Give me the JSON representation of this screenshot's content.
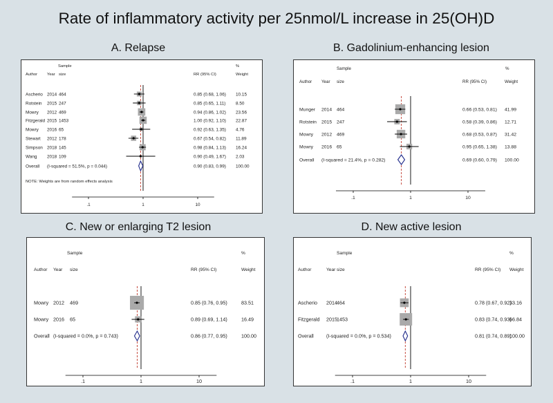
{
  "title": "Rate of inflammatory activity per 25nmol/L increase in 25(OH)D",
  "chart_data": [
    {
      "type": "forest",
      "panel_title": "A. Relapse",
      "headers": {
        "sample": "Sample",
        "pct": "%",
        "author": "Author",
        "year": "Year",
        "size": "size",
        "rr": "RR (95% CI)",
        "weight": "Weight"
      },
      "x_scale": "log",
      "xlim": [
        0.05,
        20
      ],
      "ticks": [
        ".1",
        "1",
        "10"
      ],
      "studies": [
        {
          "author": "Ascherio",
          "year": "2014",
          "size": "464",
          "rr": 0.85,
          "lo": 0.68,
          "hi": 1.06,
          "weight": 10.15,
          "ci_text": "0.85 (0.68, 1.06)",
          "weight_text": "10.15"
        },
        {
          "author": "Rotstein",
          "year": "2015",
          "size": "247",
          "rr": 0.85,
          "lo": 0.65,
          "hi": 1.11,
          "weight": 8.5,
          "ci_text": "0.85 (0.65, 1.11)",
          "weight_text": "8.50"
        },
        {
          "author": "Mowry",
          "year": "2012",
          "size": "469",
          "rr": 0.94,
          "lo": 0.86,
          "hi": 1.02,
          "weight": 23.56,
          "ci_text": "0.94 (0.86, 1.02)",
          "weight_text": "23.56"
        },
        {
          "author": "Fitzgerald",
          "year": "2015",
          "size": "1453",
          "rr": 1.0,
          "lo": 0.92,
          "hi": 1.1,
          "weight": 22.87,
          "ci_text": "1.00 (0.92, 1.10)",
          "weight_text": "22.87"
        },
        {
          "author": "Mowry",
          "year": "2016",
          "size": "65",
          "rr": 0.92,
          "lo": 0.63,
          "hi": 1.35,
          "weight": 4.76,
          "ci_text": "0.92 (0.63, 1.35)",
          "weight_text": "4.76"
        },
        {
          "author": "Stewart",
          "year": "2012",
          "size": "178",
          "rr": 0.67,
          "lo": 0.54,
          "hi": 0.82,
          "weight": 11.89,
          "ci_text": "0.67 (0.54, 0.82)",
          "weight_text": "11.89"
        },
        {
          "author": "Simpson",
          "year": "2018",
          "size": "145",
          "rr": 0.98,
          "lo": 0.84,
          "hi": 1.13,
          "weight": 16.24,
          "ci_text": "0.98 (0.84, 1.13)",
          "weight_text": "16.24"
        },
        {
          "author": "Wang",
          "year": "2018",
          "size": "109",
          "rr": 0.9,
          "lo": 0.49,
          "hi": 1.67,
          "weight": 2.03,
          "ci_text": "0.90 (0.49, 1.67)",
          "weight_text": "2.03"
        }
      ],
      "overall": {
        "label": "Overall",
        "het": "(I-squared = 51.5%, p = 0.044)",
        "rr": 0.9,
        "lo": 0.83,
        "hi": 0.99,
        "ci_text": "0.90 (0.83, 0.99)",
        "weight_text": "100.00"
      },
      "note": "NOTE: Weights are from random effects analysis"
    },
    {
      "type": "forest",
      "panel_title": "B. Gadolinium-enhancing lesion",
      "headers": {
        "sample": "Sample",
        "pct": "%",
        "author": "Author",
        "year": "Year",
        "size": "size",
        "rr": "RR (95% CI)",
        "weight": "Weight"
      },
      "x_scale": "log",
      "xlim": [
        0.05,
        20
      ],
      "ticks": [
        ".1",
        "1",
        "10"
      ],
      "studies": [
        {
          "author": "Munger",
          "year": "2014",
          "size": "464",
          "rr": 0.66,
          "lo": 0.53,
          "hi": 0.81,
          "weight": 41.99,
          "ci_text": "0.66 (0.53, 0.81)",
          "weight_text": "41.99"
        },
        {
          "author": "Rotstein",
          "year": "2015",
          "size": "247",
          "rr": 0.58,
          "lo": 0.39,
          "hi": 0.86,
          "weight": 12.71,
          "ci_text": "0.58 (0.39, 0.86)",
          "weight_text": "12.71"
        },
        {
          "author": "Mowry",
          "year": "2012",
          "size": "469",
          "rr": 0.68,
          "lo": 0.53,
          "hi": 0.87,
          "weight": 31.42,
          "ci_text": "0.68 (0.53, 0.87)",
          "weight_text": "31.42"
        },
        {
          "author": "Mowry",
          "year": "2016",
          "size": "65",
          "rr": 0.95,
          "lo": 0.65,
          "hi": 1.38,
          "weight": 13.88,
          "ci_text": "0.95 (0.65, 1.38)",
          "weight_text": "13.88"
        }
      ],
      "overall": {
        "label": "Overall",
        "het": "(I-squared = 21.4%, p = 0.282)",
        "rr": 0.69,
        "lo": 0.6,
        "hi": 0.79,
        "ci_text": "0.69 (0.60, 0.79)",
        "weight_text": "100.00"
      },
      "note": ""
    },
    {
      "type": "forest",
      "panel_title": "C. New or enlarging T2 lesion",
      "headers": {
        "sample": "Sample",
        "pct": "%",
        "author": "Author",
        "year": "Year",
        "size": "size",
        "rr": "RR (95% CI)",
        "weight": "Weight"
      },
      "x_scale": "log",
      "xlim": [
        0.05,
        20
      ],
      "ticks": [
        ".1",
        "1",
        "10"
      ],
      "studies": [
        {
          "author": "Mowry",
          "year": "2012",
          "size": "469",
          "rr": 0.85,
          "lo": 0.76,
          "hi": 0.95,
          "weight": 83.51,
          "ci_text": "0.85 (0.76, 0.95)",
          "weight_text": "83.51"
        },
        {
          "author": "Mowry",
          "year": "2016",
          "size": "65",
          "rr": 0.89,
          "lo": 0.69,
          "hi": 1.14,
          "weight": 16.49,
          "ci_text": "0.89 (0.69, 1.14)",
          "weight_text": "16.49"
        }
      ],
      "overall": {
        "label": "Overall",
        "het": "(I-squared = 0.0%, p = 0.743)",
        "rr": 0.86,
        "lo": 0.77,
        "hi": 0.95,
        "ci_text": "0.86 (0.77, 0.95)",
        "weight_text": "100.00"
      },
      "note": ""
    },
    {
      "type": "forest",
      "panel_title": "D. New active lesion",
      "headers": {
        "sample": "Sample",
        "pct": "%",
        "author": "Author",
        "year": "Year",
        "size": "size",
        "rr": "RR (95% CI)",
        "weight": "Weight"
      },
      "x_scale": "log",
      "xlim": [
        0.05,
        20
      ],
      "ticks": [
        ".1",
        "1",
        "10"
      ],
      "studies": [
        {
          "author": "Ascherio",
          "year": "2014",
          "size": "464",
          "rr": 0.78,
          "lo": 0.67,
          "hi": 0.92,
          "weight": 33.16,
          "ci_text": "0.78 (0.67, 0.92)",
          "weight_text": "33.16"
        },
        {
          "author": "Fitzgerald",
          "year": "2015",
          "size": "1453",
          "rr": 0.83,
          "lo": 0.74,
          "hi": 0.93,
          "weight": 66.84,
          "ci_text": "0.83 (0.74, 0.93)",
          "weight_text": "66.84"
        }
      ],
      "overall": {
        "label": "Overall",
        "het": "(I-squared = 0.0%, p = 0.534)",
        "rr": 0.81,
        "lo": 0.74,
        "hi": 0.89,
        "ci_text": "0.81 (0.74, 0.89)",
        "weight_text": "100.00"
      },
      "note": ""
    }
  ]
}
